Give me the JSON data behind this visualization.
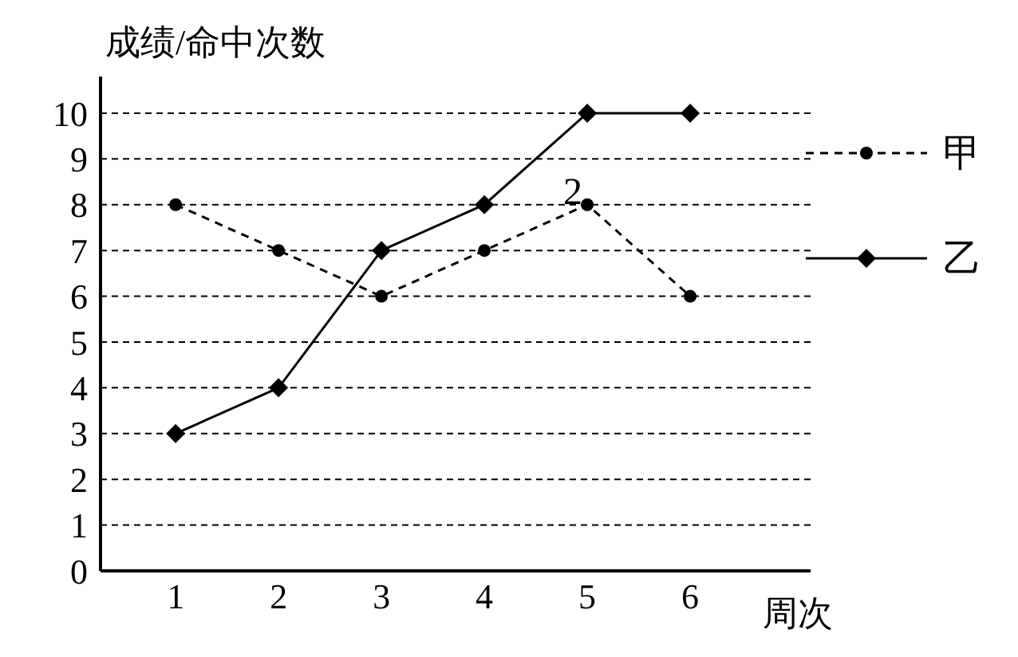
{
  "chart_data": {
    "type": "line",
    "xlabel": "周次",
    "ylabel": "成绩/命中次数",
    "x": [
      1,
      2,
      3,
      4,
      5,
      6
    ],
    "series": [
      {
        "name": "甲",
        "color": "#000000",
        "values": [
          8,
          7,
          6,
          7,
          8,
          6
        ],
        "marker": "circle",
        "line_style": "dashed"
      },
      {
        "name": "乙",
        "color": "#000000",
        "values": [
          3,
          4,
          7,
          8,
          10,
          10
        ],
        "marker": "diamond",
        "line_style": "solid"
      }
    ],
    "xlim": [
      0.27,
      7.17
    ],
    "xticks": [
      1,
      2,
      3,
      4,
      5,
      6
    ],
    "ylim": [
      0,
      10.8
    ],
    "yticks": [
      0,
      1,
      2,
      3,
      4,
      5,
      6,
      7,
      8,
      9,
      10
    ],
    "grid": "y",
    "legend": "right",
    "annotations": [
      "2"
    ]
  }
}
